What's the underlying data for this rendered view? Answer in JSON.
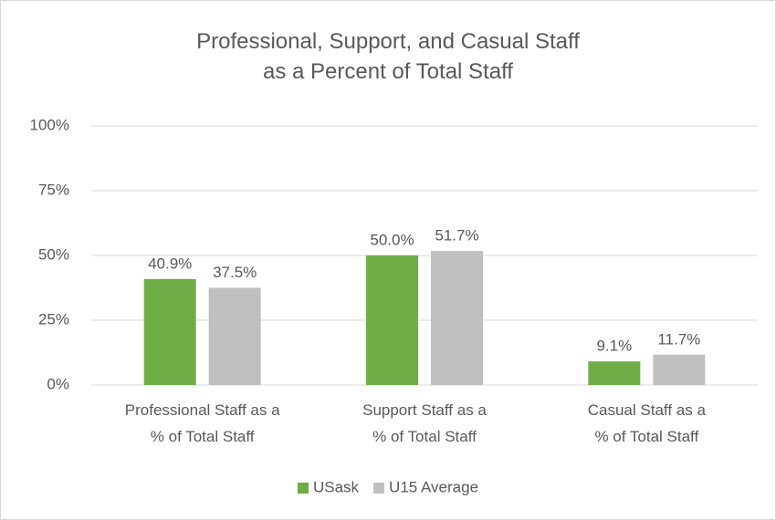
{
  "chart_data": {
    "type": "bar",
    "title": [
      "Professional, Support, and Casual Staff",
      "as a Percent of Total Staff"
    ],
    "categories": [
      [
        "Professional Staff as a",
        "% of Total Staff"
      ],
      [
        "Support Staff as a",
        "% of Total Staff"
      ],
      [
        "Casual Staff as a",
        "% of Total Staff"
      ]
    ],
    "series": [
      {
        "name": "USask",
        "color": "#70ad47",
        "values": [
          40.9,
          50.0,
          9.1
        ],
        "value_labels": [
          "40.9%",
          "50.0%",
          "9.1%"
        ]
      },
      {
        "name": "U15 Average",
        "color": "#bfbfbf",
        "values": [
          37.5,
          51.7,
          11.7
        ],
        "value_labels": [
          "37.5%",
          "51.7%",
          "11.7%"
        ]
      }
    ],
    "ylim": [
      0,
      100
    ],
    "yticks": [
      {
        "value": 0,
        "label": "0%"
      },
      {
        "value": 25,
        "label": "25%"
      },
      {
        "value": 50,
        "label": "50%"
      },
      {
        "value": 75,
        "label": "75%"
      },
      {
        "value": 100,
        "label": "100%"
      }
    ],
    "grid": true,
    "legend": "bottom"
  }
}
